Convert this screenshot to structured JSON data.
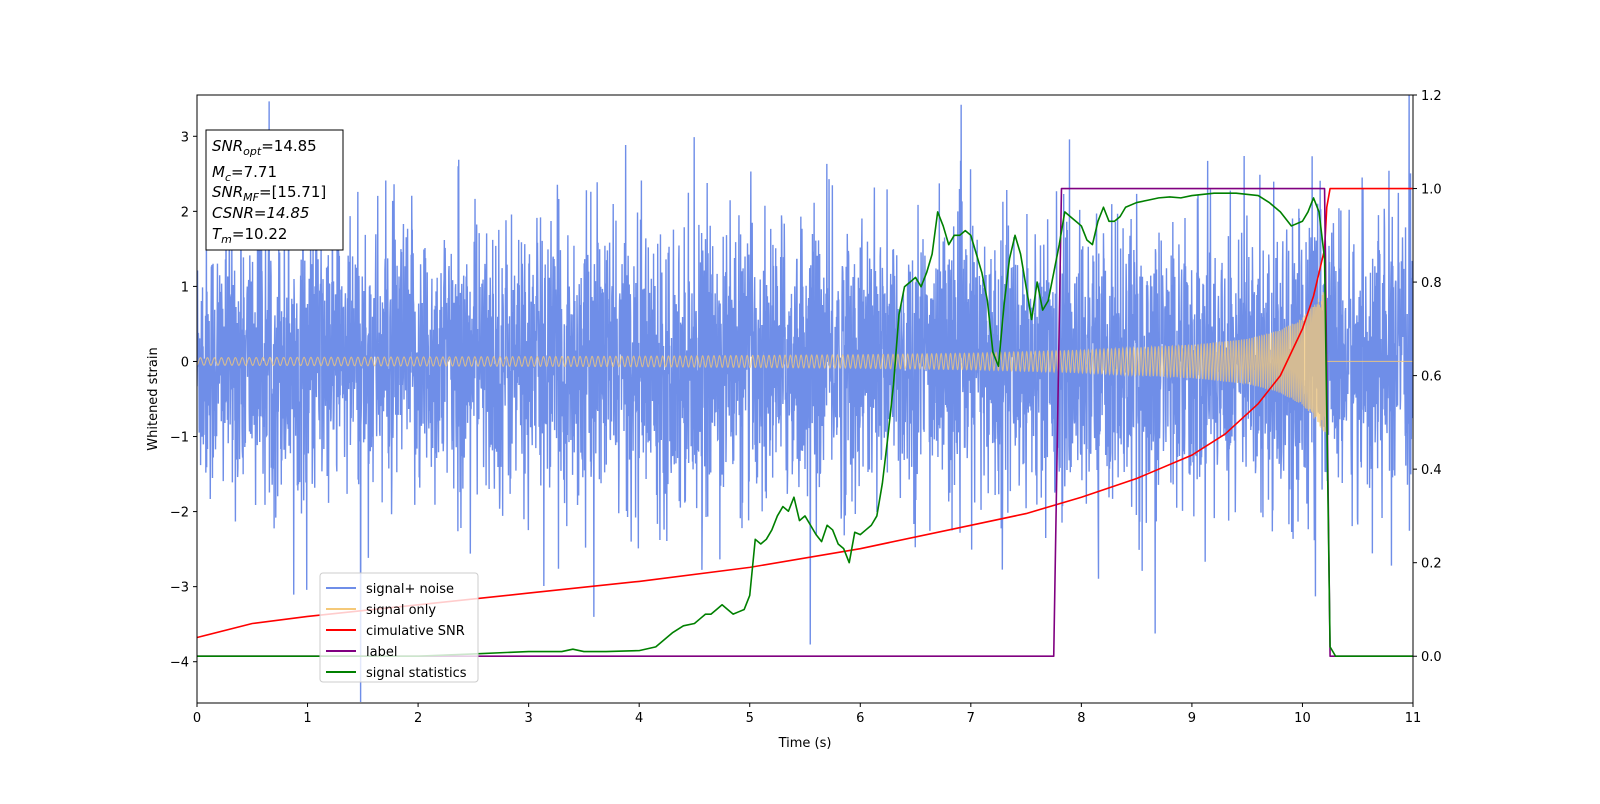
{
  "chart_data": {
    "type": "line",
    "xlabel": "Time (s)",
    "ylabel": "Whitened strain",
    "xlim": [
      0,
      11
    ],
    "ylim_left": [
      -4.55,
      3.55
    ],
    "ylim_right": [
      -0.1,
      1.2
    ],
    "x_ticks": [
      "0",
      "1",
      "2",
      "3",
      "4",
      "5",
      "6",
      "7",
      "8",
      "9",
      "10",
      "11"
    ],
    "y_ticks_left": [
      "3",
      "2",
      "1",
      "0",
      "−1",
      "−2",
      "−3",
      "−4"
    ],
    "y_ticks_right": [
      "1.2",
      "1.0",
      "0.8",
      "0.6",
      "0.4",
      "0.2",
      "0.0"
    ],
    "info_box": {
      "snr_opt": {
        "base": "SNR",
        "sub": "opt",
        "value": "=14.85"
      },
      "mc": {
        "base": "M",
        "sub": "c",
        "value": "=7.71"
      },
      "snr_mf": {
        "base": "SNR",
        "sub": "MF",
        "value": "=[15.71]"
      },
      "csnr": {
        "text": "CSNR=14.85"
      },
      "tm": {
        "base": "T",
        "sub": "m",
        "value": "=10.22"
      }
    },
    "legend": [
      {
        "label": "signal+ noise",
        "color": "#6f8ee8"
      },
      {
        "label": "signal only",
        "color": "#f5c978"
      },
      {
        "label": "cimulative SNR",
        "color": "#ff0000"
      },
      {
        "label": "label",
        "color": "#800080"
      },
      {
        "label": "signal statistics",
        "color": "#008000"
      }
    ],
    "series": [
      {
        "name": "signal+ noise",
        "axis": "left",
        "color": "#6f8ee8",
        "description_only": true,
        "noise_std": 0.9,
        "x_range": [
          0,
          11
        ]
      },
      {
        "name": "signal only",
        "axis": "left",
        "color": "#f5c978",
        "merger_time": 10.22,
        "envelope": {
          "x": [
            0,
            2,
            4,
            6,
            7,
            8,
            9,
            9.5,
            9.8,
            10.0,
            10.1,
            10.2,
            10.22
          ],
          "amp": [
            0.05,
            0.06,
            0.07,
            0.09,
            0.11,
            0.15,
            0.22,
            0.3,
            0.42,
            0.58,
            0.75,
            0.95,
            1.0
          ]
        }
      },
      {
        "name": "cimulative SNR",
        "axis": "right",
        "color": "#ff0000",
        "x": [
          0,
          0.5,
          1,
          2,
          3,
          4,
          5,
          6,
          7,
          7.5,
          8,
          8.5,
          9,
          9.3,
          9.6,
          9.8,
          10.0,
          10.1,
          10.2,
          10.22,
          10.25,
          11
        ],
        "y": [
          0.04,
          0.07,
          0.085,
          0.11,
          0.135,
          0.16,
          0.19,
          0.23,
          0.28,
          0.305,
          0.34,
          0.38,
          0.43,
          0.475,
          0.54,
          0.6,
          0.7,
          0.77,
          0.87,
          0.96,
          1.0,
          1.0
        ]
      },
      {
        "name": "label",
        "axis": "right",
        "color": "#800080",
        "x": [
          0,
          7.75,
          7.82,
          10.2,
          10.25,
          11
        ],
        "y": [
          0.0,
          0.0,
          1.0,
          1.0,
          0.0,
          0.0
        ]
      },
      {
        "name": "signal statistics",
        "axis": "right",
        "color": "#008000",
        "x": [
          0,
          1,
          2,
          2.5,
          3,
          3.3,
          3.4,
          3.5,
          3.7,
          4.0,
          4.15,
          4.3,
          4.4,
          4.5,
          4.55,
          4.6,
          4.65,
          4.7,
          4.75,
          4.8,
          4.85,
          4.9,
          4.95,
          5.0,
          5.05,
          5.1,
          5.15,
          5.2,
          5.25,
          5.3,
          5.35,
          5.4,
          5.45,
          5.5,
          5.55,
          5.6,
          5.65,
          5.7,
          5.75,
          5.8,
          5.85,
          5.9,
          5.95,
          6.0,
          6.05,
          6.1,
          6.15,
          6.2,
          6.25,
          6.3,
          6.35,
          6.4,
          6.45,
          6.5,
          6.55,
          6.6,
          6.65,
          6.7,
          6.75,
          6.8,
          6.85,
          6.9,
          6.95,
          7.0,
          7.05,
          7.1,
          7.15,
          7.2,
          7.25,
          7.3,
          7.35,
          7.4,
          7.45,
          7.5,
          7.55,
          7.6,
          7.65,
          7.7,
          7.75,
          7.8,
          7.85,
          7.9,
          7.95,
          8.0,
          8.05,
          8.1,
          8.15,
          8.2,
          8.25,
          8.3,
          8.35,
          8.4,
          8.5,
          8.6,
          8.7,
          8.8,
          8.9,
          9.0,
          9.2,
          9.4,
          9.6,
          9.7,
          9.8,
          9.9,
          10.0,
          10.05,
          10.1,
          10.15,
          10.2,
          10.25,
          10.3,
          10.4,
          11
        ],
        "y": [
          0.0,
          0.0,
          0.0,
          0.005,
          0.01,
          0.01,
          0.015,
          0.01,
          0.01,
          0.012,
          0.02,
          0.05,
          0.065,
          0.07,
          0.08,
          0.09,
          0.09,
          0.1,
          0.11,
          0.1,
          0.09,
          0.095,
          0.1,
          0.13,
          0.25,
          0.24,
          0.25,
          0.27,
          0.3,
          0.32,
          0.31,
          0.34,
          0.29,
          0.3,
          0.28,
          0.26,
          0.245,
          0.28,
          0.27,
          0.24,
          0.23,
          0.2,
          0.265,
          0.26,
          0.27,
          0.28,
          0.3,
          0.37,
          0.47,
          0.58,
          0.73,
          0.79,
          0.8,
          0.81,
          0.79,
          0.82,
          0.86,
          0.95,
          0.92,
          0.88,
          0.9,
          0.9,
          0.91,
          0.9,
          0.86,
          0.82,
          0.76,
          0.65,
          0.62,
          0.75,
          0.85,
          0.9,
          0.86,
          0.79,
          0.72,
          0.8,
          0.74,
          0.76,
          0.82,
          0.88,
          0.95,
          0.94,
          0.93,
          0.92,
          0.89,
          0.88,
          0.93,
          0.96,
          0.93,
          0.93,
          0.94,
          0.96,
          0.97,
          0.975,
          0.98,
          0.982,
          0.98,
          0.985,
          0.99,
          0.99,
          0.985,
          0.97,
          0.95,
          0.92,
          0.93,
          0.95,
          0.98,
          0.95,
          0.85,
          0.02,
          0.0,
          0.0,
          0.0
        ]
      }
    ]
  }
}
